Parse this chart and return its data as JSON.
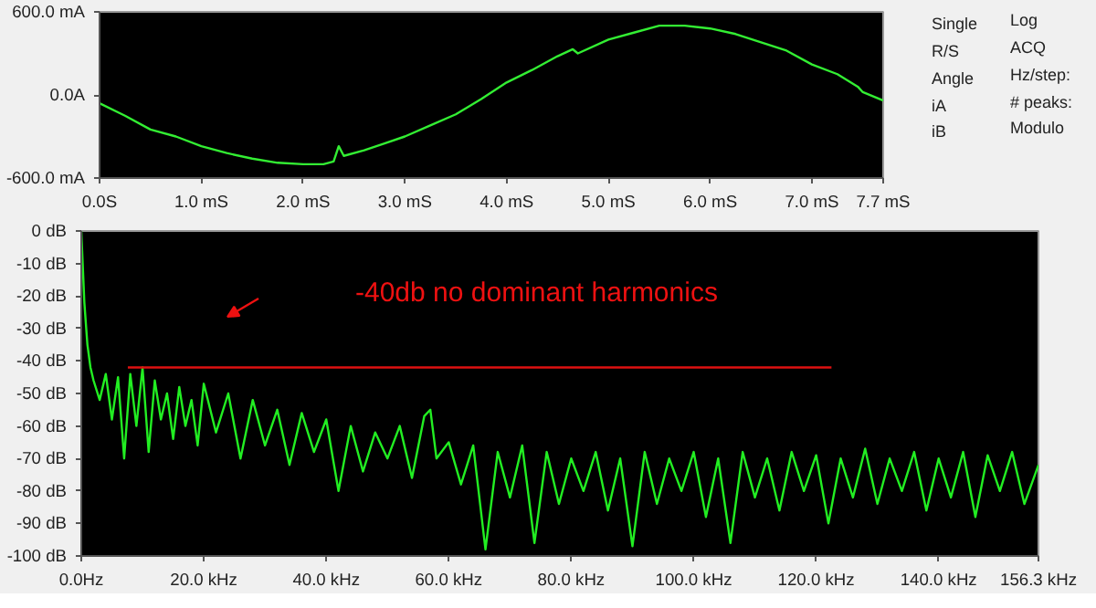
{
  "chart_data": [
    {
      "type": "line",
      "xlim": [
        0,
        7.7
      ],
      "ylim": [
        -600,
        600
      ],
      "xticks": [
        {
          "value": 0,
          "label": "0.0S"
        },
        {
          "value": 1,
          "label": "1.0 mS"
        },
        {
          "value": 2,
          "label": "2.0 mS"
        },
        {
          "value": 3,
          "label": "3.0 mS"
        },
        {
          "value": 4,
          "label": "4.0 mS"
        },
        {
          "value": 5,
          "label": "5.0 mS"
        },
        {
          "value": 6,
          "label": "6.0 mS"
        },
        {
          "value": 7,
          "label": "7.0 mS"
        },
        {
          "value": 7.7,
          "label": "7.7 mS"
        }
      ],
      "yticks": [
        {
          "value": -600,
          "label": "-600.0 mA"
        },
        {
          "value": 0,
          "label": "0.0A"
        },
        {
          "value": 600,
          "label": "600.0 mA"
        }
      ],
      "series": [
        {
          "color": "#33ee33",
          "x": [
            0,
            0.25,
            0.5,
            0.75,
            1,
            1.25,
            1.5,
            1.75,
            2,
            2.2,
            2.3,
            2.35,
            2.4,
            2.6,
            2.8,
            3,
            3.25,
            3.5,
            3.75,
            4,
            4.25,
            4.5,
            4.65,
            4.7,
            5,
            5.25,
            5.5,
            5.75,
            6,
            6.25,
            6.5,
            6.75,
            7,
            7.25,
            7.45,
            7.5,
            7.7
          ],
          "values": [
            -60,
            -150,
            -250,
            -300,
            -370,
            -420,
            -460,
            -490,
            -500,
            -500,
            -480,
            -370,
            -440,
            -400,
            -350,
            -300,
            -220,
            -140,
            -30,
            90,
            180,
            280,
            330,
            300,
            400,
            450,
            500,
            500,
            480,
            440,
            380,
            320,
            220,
            150,
            60,
            20,
            -40
          ]
        }
      ]
    },
    {
      "type": "other",
      "annotations": [
        "Single",
        "R/S",
        "Angle",
        "iA",
        "iB",
        "Log",
        "ACQ",
        "Hz/step:",
        "# peaks:",
        "Modulo"
      ]
    },
    {
      "type": "line",
      "xlim": [
        0,
        156.3
      ],
      "ylim": [
        -100,
        0
      ],
      "xticks": [
        {
          "value": 0,
          "label": "0.0Hz"
        },
        {
          "value": 20,
          "label": "20.0 kHz"
        },
        {
          "value": 40,
          "label": "40.0 kHz"
        },
        {
          "value": 60,
          "label": "60.0 kHz"
        },
        {
          "value": 80,
          "label": "80.0 kHz"
        },
        {
          "value": 100,
          "label": "100.0 kHz"
        },
        {
          "value": 120,
          "label": "120.0 kHz"
        },
        {
          "value": 140,
          "label": "140.0 kHz"
        },
        {
          "value": 156.3,
          "label": "156.3 kHz"
        }
      ],
      "yticks": [
        {
          "value": 0,
          "label": "0 dB"
        },
        {
          "value": -10,
          "label": "-10 dB"
        },
        {
          "value": -20,
          "label": "-20 dB"
        },
        {
          "value": -30,
          "label": "-30 dB"
        },
        {
          "value": -40,
          "label": "-40 dB"
        },
        {
          "value": -50,
          "label": "-50 dB"
        },
        {
          "value": -60,
          "label": "-60 dB"
        },
        {
          "value": -70,
          "label": "-70 dB"
        },
        {
          "value": -80,
          "label": "-80 dB"
        },
        {
          "value": -90,
          "label": "-90 dB"
        },
        {
          "value": -100,
          "label": "-100 dB"
        }
      ],
      "series": [
        {
          "color": "#22ee22",
          "x": [
            0,
            0.5,
            1,
            1.5,
            2,
            3,
            4,
            5,
            6,
            7,
            8,
            9,
            10,
            11,
            12,
            13,
            14,
            15,
            16,
            17,
            18,
            19,
            20,
            22,
            24,
            26,
            28,
            30,
            32,
            34,
            36,
            38,
            40,
            42,
            44,
            46,
            48,
            50,
            52,
            54,
            56,
            57,
            58,
            60,
            62,
            64,
            66,
            68,
            70,
            72,
            74,
            76,
            78,
            80,
            82,
            84,
            86,
            88,
            90,
            92,
            94,
            96,
            98,
            100,
            102,
            104,
            106,
            108,
            110,
            112,
            114,
            116,
            118,
            120,
            122,
            124,
            126,
            128,
            130,
            132,
            134,
            136,
            138,
            140,
            142,
            144,
            146,
            148,
            150,
            152,
            154,
            156.3
          ],
          "values": [
            0,
            -22,
            -35,
            -42,
            -46,
            -52,
            -44,
            -58,
            -45,
            -70,
            -44,
            -60,
            -42,
            -68,
            -46,
            -58,
            -50,
            -64,
            -48,
            -60,
            -52,
            -66,
            -47,
            -62,
            -50,
            -70,
            -52,
            -66,
            -55,
            -72,
            -56,
            -68,
            -58,
            -80,
            -60,
            -74,
            -62,
            -70,
            -60,
            -76,
            -57,
            -55,
            -70,
            -65,
            -78,
            -66,
            -98,
            -68,
            -82,
            -66,
            -96,
            -68,
            -84,
            -70,
            -80,
            -68,
            -86,
            -70,
            -97,
            -68,
            -84,
            -70,
            -80,
            -68,
            -88,
            -70,
            -96,
            -68,
            -82,
            -70,
            -86,
            -68,
            -80,
            -69,
            -90,
            -70,
            -82,
            -67,
            -84,
            -70,
            -80,
            -68,
            -86,
            -70,
            -82,
            -68,
            -88,
            -69,
            -80,
            -68,
            -84,
            -72
          ]
        },
        {
          "type": "line",
          "color": "#dd1111",
          "x": [
            7.6,
            122.5
          ],
          "values": [
            -42,
            -42
          ]
        }
      ],
      "annotations": [
        "-40db no dominant harmonics"
      ]
    }
  ]
}
